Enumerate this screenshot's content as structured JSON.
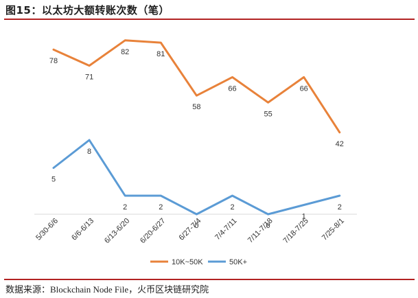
{
  "figure": {
    "title": "图15：以太坊大额转账次数（笔）",
    "source_prefix": "数据来源：",
    "source_en": "Blockchain Node File",
    "source_suffix": "，火币区块链研究院"
  },
  "colors": {
    "rule": "#b22222",
    "series1": "#e8823a",
    "series2": "#5b9bd5",
    "axis": "#d9d9d9"
  },
  "chart_data": {
    "type": "line",
    "title": "以太坊大额转账次数（笔）",
    "xlabel": "",
    "ylabel": "",
    "grid": false,
    "legend_position": "bottom",
    "categories": [
      "5/30-6/6",
      "6/6-6/13",
      "6/13-6/20",
      "6/20-6/27",
      "6/27-7/4",
      "7/4-7/11",
      "7/11-7/18",
      "7/18-7/25",
      "7/25-8/1"
    ],
    "series": [
      {
        "name": "10K~50K",
        "values": [
          78,
          71,
          82,
          81,
          58,
          66,
          55,
          66,
          42
        ]
      },
      {
        "name": "50K+",
        "values": [
          5,
          8,
          2,
          2,
          0,
          2,
          0,
          1,
          2
        ]
      }
    ]
  }
}
